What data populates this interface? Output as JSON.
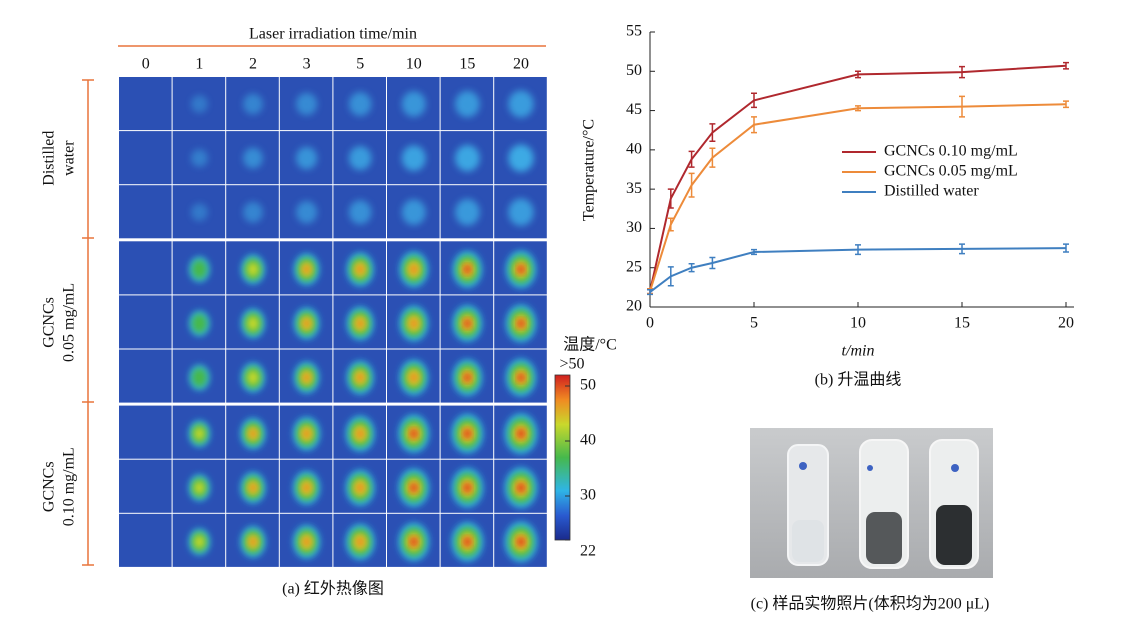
{
  "thermal": {
    "header": "Laser irradiation time/min",
    "columns": [
      "0",
      "1",
      "2",
      "3",
      "5",
      "10",
      "15",
      "20"
    ],
    "row_groups": [
      [
        "Distilled",
        "water"
      ],
      [
        "GCNCs",
        "0.05 mg/mL"
      ],
      [
        "GCNCs",
        "0.10 mg/mL"
      ]
    ],
    "colorbar": {
      "title": "温度/°C",
      "top_label": ">50",
      "range": [
        22,
        52
      ],
      "ticks": [
        22,
        30,
        40,
        50
      ]
    },
    "caption": "(a) 红外热像图"
  },
  "chart_data": {
    "type": "line",
    "x": [
      0,
      1,
      2,
      3,
      5,
      10,
      15,
      20
    ],
    "xlim": [
      0,
      20
    ],
    "xticks": [
      0,
      5,
      10,
      15,
      20
    ],
    "ylim": [
      20,
      55
    ],
    "yticks": [
      20,
      25,
      30,
      35,
      40,
      45,
      50,
      55
    ],
    "xlabel": "t/min",
    "ylabel": "Temperature/°C",
    "caption": "(b) 升温曲线",
    "series": [
      {
        "name": "GCNCs 0.10 mg/mL",
        "color": "#b0282e",
        "values": [
          22,
          33.8,
          38.8,
          42.2,
          46.3,
          49.6,
          49.9,
          50.7
        ],
        "errors": [
          0.3,
          1.2,
          1.0,
          1.1,
          0.9,
          0.4,
          0.7,
          0.4
        ]
      },
      {
        "name": "GCNCs 0.05 mg/mL",
        "color": "#ed8b3a",
        "values": [
          22,
          30.5,
          35.5,
          39,
          43.2,
          45.3,
          45.5,
          45.8
        ],
        "errors": [
          0.3,
          0.8,
          1.5,
          1.2,
          1.0,
          0.3,
          1.3,
          0.4
        ]
      },
      {
        "name": "Distilled water",
        "color": "#3f7fc0",
        "values": [
          21.9,
          23.9,
          25,
          25.6,
          27,
          27.3,
          27.4,
          27.5
        ],
        "errors": [
          0.3,
          1.2,
          0.5,
          0.7,
          0.3,
          0.6,
          0.6,
          0.5
        ]
      }
    ]
  },
  "photo": {
    "caption": "(c) 样品实物照片(体积均为200 μL)"
  }
}
